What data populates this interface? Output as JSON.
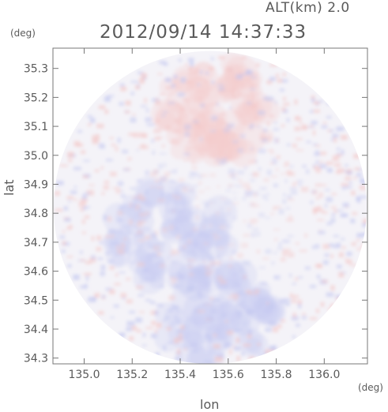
{
  "header": {
    "altitude": "ALT(km) 2.0",
    "timestamp": "2012/09/14 14:37:33"
  },
  "chart_data": {
    "type": "heatmap",
    "title": "2012/09/14 14:37:33",
    "xlabel": "lon",
    "ylabel": "lat",
    "xunit": "(deg)",
    "yunit": "(deg)",
    "xlim": [
      134.87,
      136.18
    ],
    "ylim": [
      34.28,
      35.37
    ],
    "xticks": [
      135.0,
      135.2,
      135.4,
      135.6,
      135.8,
      136.0
    ],
    "yticks": [
      34.3,
      34.4,
      34.5,
      34.6,
      34.7,
      34.8,
      34.9,
      35.0,
      35.1,
      35.2,
      35.3
    ],
    "xtick_labels": [
      "135.0",
      "135.2",
      "135.4",
      "135.6",
      "135.8",
      "136.0"
    ],
    "ytick_labels": [
      "34.3",
      "34.4",
      "34.5",
      "34.6",
      "34.7",
      "34.8",
      "34.9",
      "35.0",
      "35.1",
      "35.2",
      "35.3"
    ],
    "domain_center": [
      135.525,
      34.82
    ],
    "colors": {
      "positive": "#f3c8c8",
      "negative": "#c4c8f0",
      "neutral": "#f4f3f8"
    },
    "regions": [
      {
        "name": "north-positive",
        "center": [
          135.55,
          35.15
        ],
        "sign": "positive"
      },
      {
        "name": "south-negative",
        "center": [
          135.55,
          34.45
        ],
        "sign": "negative"
      },
      {
        "name": "west-negative",
        "center": [
          135.35,
          34.72
        ],
        "sign": "negative"
      }
    ]
  }
}
